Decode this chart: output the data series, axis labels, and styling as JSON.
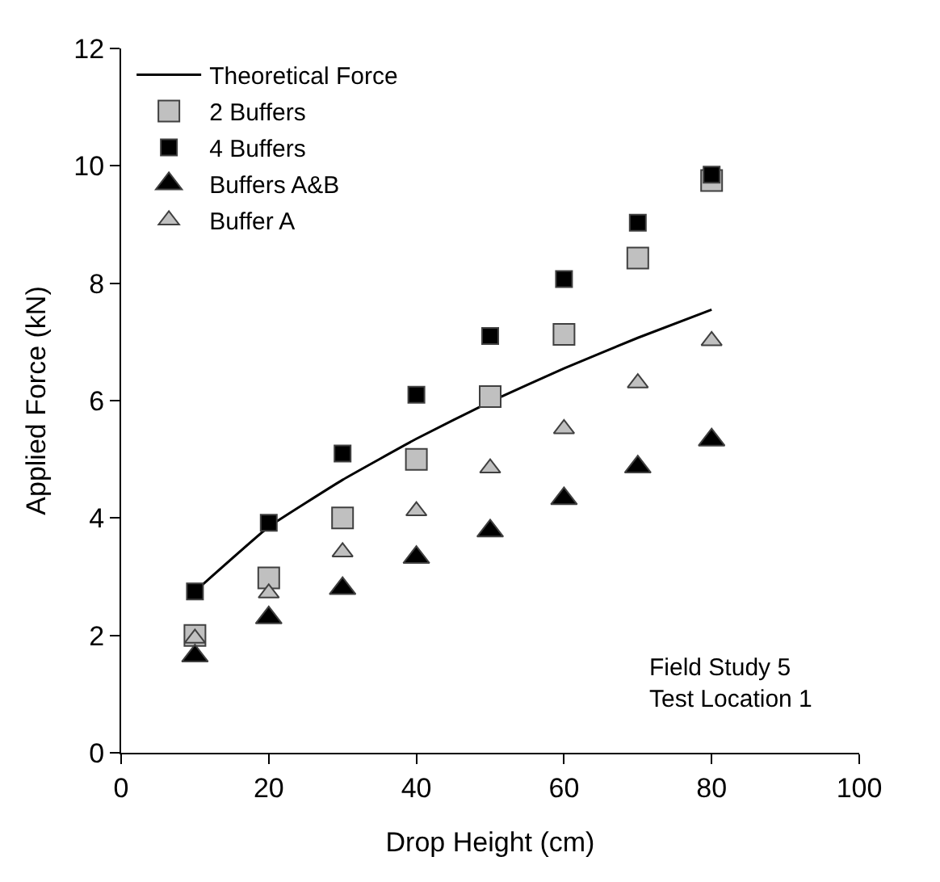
{
  "chart_data": {
    "type": "scatter",
    "xlabel": "Drop Height (cm)",
    "ylabel": "Applied Force (kN)",
    "x": [
      10,
      20,
      30,
      40,
      50,
      60,
      70,
      80
    ],
    "xlim": [
      0,
      100
    ],
    "xticks": [
      0,
      20,
      40,
      60,
      80,
      100
    ],
    "ylim": [
      0,
      12
    ],
    "yticks": [
      0,
      2,
      4,
      6,
      8,
      10,
      12
    ],
    "legend": "top left",
    "series": [
      {
        "name": "Theoretical Force",
        "type": "line",
        "color": "#000000",
        "marker": "none",
        "line_style": "solid",
        "values": [
          2.75,
          3.85,
          4.65,
          5.35,
          5.98,
          6.55,
          7.07,
          7.55
        ]
      },
      {
        "name": "2 Buffers",
        "color": "#c0c0c0",
        "marker": "square",
        "values": [
          2.0,
          2.98,
          4.0,
          5.0,
          6.07,
          7.13,
          8.43,
          9.75
        ]
      },
      {
        "name": "4 Buffers",
        "color": "#000000",
        "marker": "square",
        "values": [
          2.75,
          3.92,
          5.1,
          6.1,
          7.1,
          8.07,
          9.03,
          9.85
        ]
      },
      {
        "name": "Buffers A&B",
        "color": "#000000",
        "marker": "triangle",
        "values": [
          1.65,
          2.3,
          2.8,
          3.33,
          3.78,
          4.33,
          4.87,
          5.33
        ]
      },
      {
        "name": "Buffer A",
        "color": "#c0c0c0",
        "marker": "triangle",
        "values": [
          1.95,
          2.72,
          3.42,
          4.12,
          4.85,
          5.52,
          6.3,
          7.02
        ]
      }
    ],
    "annotations": [
      "Field Study 5\nTest Location 1"
    ]
  }
}
